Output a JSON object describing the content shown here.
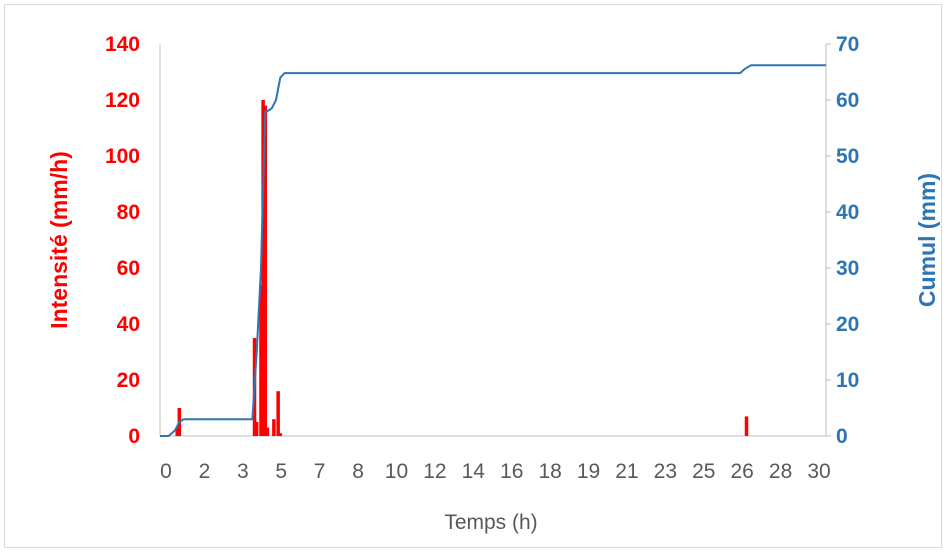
{
  "chart_data": {
    "type": "bar",
    "xlabel": "Temps (h)",
    "ylabel_left": "Intensité (mm/h)",
    "ylabel_right": "Cumul (mm)",
    "x_tick_labels": [
      "0",
      "2",
      "3",
      "5",
      "7",
      "8",
      "10",
      "12",
      "14",
      "16",
      "18",
      "19",
      "21",
      "23",
      "25",
      "26",
      "28",
      "30"
    ],
    "x_range": [
      0,
      31
    ],
    "y_left_ticks": [
      "0",
      "20",
      "40",
      "60",
      "80",
      "100",
      "120",
      "140"
    ],
    "y_right_ticks": [
      "0",
      "10",
      "20",
      "30",
      "40",
      "50",
      "60",
      "70"
    ],
    "y_left_range": [
      0,
      140
    ],
    "y_right_range": [
      0,
      70
    ],
    "grid": false,
    "colors": {
      "intensity": "#ff0000",
      "cumul": "#2e75b6",
      "axis": "#bfbfbf"
    },
    "series": [
      {
        "name": "Intensité (mm/h)",
        "axis": "left",
        "type": "bar",
        "x": [
          0.8,
          0.9,
          4.4,
          4.5,
          4.7,
          4.8,
          4.9,
          5.0,
          5.3,
          5.5,
          5.6,
          27.3
        ],
        "values": [
          3,
          10,
          35,
          5,
          54,
          120,
          118,
          3,
          6,
          16,
          1,
          7
        ]
      },
      {
        "name": "Cumul (mm)",
        "axis": "right",
        "type": "line",
        "x": [
          0,
          0.4,
          0.7,
          0.9,
          1.1,
          4.3,
          4.5,
          4.7,
          4.9,
          5.0,
          5.2,
          5.4,
          5.6,
          5.8,
          27.0,
          27.2,
          27.5,
          31
        ],
        "values": [
          0,
          0,
          1,
          2.5,
          3,
          3,
          15,
          30,
          58,
          58,
          58.5,
          60,
          64,
          64.8,
          64.8,
          65.5,
          66.2,
          66.2
        ]
      }
    ]
  }
}
